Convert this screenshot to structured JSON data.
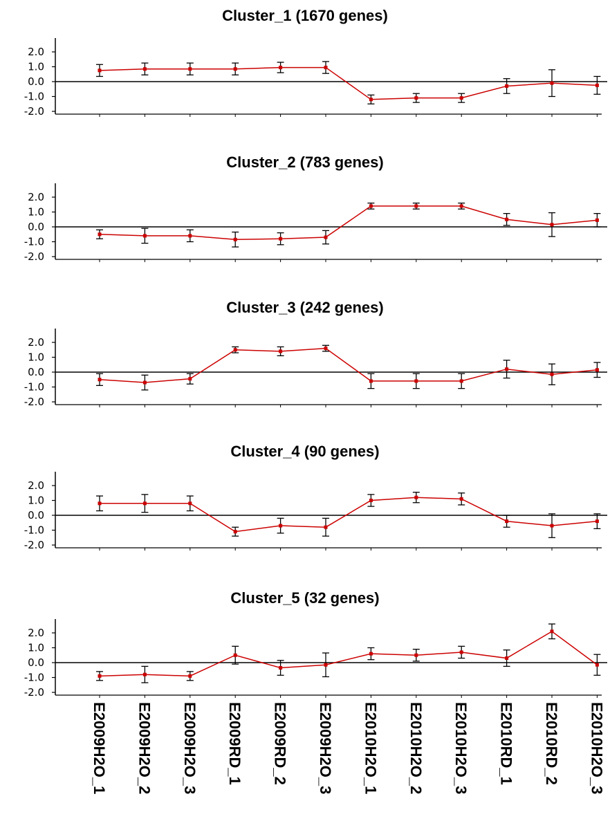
{
  "chart_data": [
    {
      "type": "line",
      "title": "Cluster_1 (1670 genes)",
      "categories": [
        "E2009H2O_1",
        "E2009H2O_2",
        "E2009H2O_3",
        "E2009RD_1",
        "E2009RD_2",
        "E2009H2O_3",
        "E2010H2O_1",
        "E2010H2O_2",
        "E2010H2O_3",
        "E2010RD_1",
        "E2010RD_2",
        "E2010H2O_3"
      ],
      "values": [
        0.75,
        0.85,
        0.85,
        0.85,
        0.95,
        0.95,
        -1.2,
        -1.1,
        -1.1,
        -0.3,
        -0.1,
        -0.25
      ],
      "errors": [
        0.4,
        0.4,
        0.4,
        0.4,
        0.35,
        0.4,
        0.3,
        0.3,
        0.3,
        0.5,
        0.9,
        0.6
      ],
      "yticks": [
        2.0,
        1.0,
        0.0,
        -1.0,
        -2.0
      ],
      "ytick_labels": [
        "2.0",
        "1.0",
        "0.0",
        "-1.0",
        "-2.0"
      ],
      "ylim": [
        -2,
        2
      ],
      "color": "#cc0000"
    },
    {
      "type": "line",
      "title": "Cluster_2 (783 genes)",
      "categories": [
        "E2009H2O_1",
        "E2009H2O_2",
        "E2009H2O_3",
        "E2009RD_1",
        "E2009RD_2",
        "E2009H2O_3",
        "E2010H2O_1",
        "E2010H2O_2",
        "E2010H2O_3",
        "E2010RD_1",
        "E2010RD_2",
        "E2010H2O_3"
      ],
      "values": [
        -0.5,
        -0.6,
        -0.6,
        -0.85,
        -0.8,
        -0.7,
        1.4,
        1.4,
        1.4,
        0.5,
        0.15,
        0.45
      ],
      "errors": [
        0.3,
        0.5,
        0.4,
        0.5,
        0.4,
        0.45,
        0.2,
        0.2,
        0.2,
        0.4,
        0.8,
        0.45
      ],
      "yticks": [
        2.0,
        1.0,
        0.0,
        -1.0,
        -2.0
      ],
      "ytick_labels": [
        "2.0",
        "1.0",
        "0.0",
        "-1.0",
        "-2.0"
      ],
      "ylim": [
        -2,
        2
      ],
      "color": "#cc0000"
    },
    {
      "type": "line",
      "title": "Cluster_3 (242 genes)",
      "categories": [
        "E2009H2O_1",
        "E2009H2O_2",
        "E2009H2O_3",
        "E2009RD_1",
        "E2009RD_2",
        "E2009H2O_3",
        "E2010H2O_1",
        "E2010H2O_2",
        "E2010H2O_3",
        "E2010RD_1",
        "E2010RD_2",
        "E2010H2O_3"
      ],
      "values": [
        -0.5,
        -0.7,
        -0.45,
        1.5,
        1.4,
        1.6,
        -0.6,
        -0.6,
        -0.6,
        0.2,
        -0.15,
        0.15
      ],
      "errors": [
        0.4,
        0.5,
        0.35,
        0.2,
        0.3,
        0.2,
        0.5,
        0.5,
        0.5,
        0.6,
        0.7,
        0.5
      ],
      "yticks": [
        2.0,
        1.0,
        0.0,
        -1.0,
        -2.0
      ],
      "ytick_labels": [
        "2.0",
        "1.0",
        "0.0",
        "-1.0",
        "-2.0"
      ],
      "ylim": [
        -2,
        2
      ],
      "color": "#cc0000"
    },
    {
      "type": "line",
      "title": "Cluster_4 (90 genes)",
      "categories": [
        "E2009H2O_1",
        "E2009H2O_2",
        "E2009H2O_3",
        "E2009RD_1",
        "E2009RD_2",
        "E2009H2O_3",
        "E2010H2O_1",
        "E2010H2O_2",
        "E2010H2O_3",
        "E2010RD_1",
        "E2010RD_2",
        "E2010H2O_3"
      ],
      "values": [
        0.8,
        0.8,
        0.8,
        -1.1,
        -0.7,
        -0.8,
        1.0,
        1.2,
        1.1,
        -0.4,
        -0.7,
        -0.4
      ],
      "errors": [
        0.5,
        0.6,
        0.5,
        0.3,
        0.5,
        0.6,
        0.4,
        0.35,
        0.4,
        0.4,
        0.8,
        0.5
      ],
      "yticks": [
        2.0,
        1.0,
        0.0,
        -1.0,
        -2.0
      ],
      "ytick_labels": [
        "2.0",
        "1.0",
        "0.0",
        "-1.0",
        "-2.0"
      ],
      "ylim": [
        -2,
        2
      ],
      "color": "#cc0000"
    },
    {
      "type": "line",
      "title": "Cluster_5 (32 genes)",
      "categories": [
        "E2009H2O_1",
        "E2009H2O_2",
        "E2009H2O_3",
        "E2009RD_1",
        "E2009RD_2",
        "E2009H2O_3",
        "E2010H2O_1",
        "E2010H2O_2",
        "E2010H2O_3",
        "E2010RD_1",
        "E2010RD_2",
        "E2010H2O_3"
      ],
      "values": [
        -0.9,
        -0.8,
        -0.9,
        0.5,
        -0.35,
        -0.15,
        0.6,
        0.5,
        0.7,
        0.3,
        2.1,
        -0.15
      ],
      "errors": [
        0.3,
        0.55,
        0.3,
        0.6,
        0.5,
        0.8,
        0.4,
        0.4,
        0.4,
        0.55,
        0.5,
        0.7
      ],
      "yticks": [
        2.0,
        1.0,
        0.0,
        -1.0,
        -2.0
      ],
      "ytick_labels": [
        "2.0",
        "1.0",
        "0.0",
        "-1.0",
        "-2.0"
      ],
      "ylim": [
        -2,
        2
      ],
      "color": "#cc0000"
    }
  ]
}
